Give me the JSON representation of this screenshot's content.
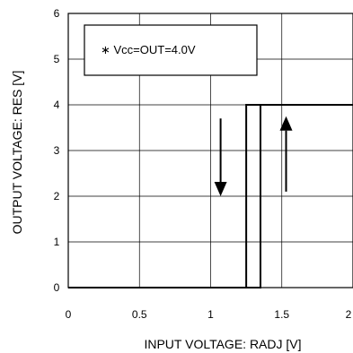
{
  "chart_data": {
    "type": "line",
    "title": "",
    "xlabel": "INPUT VOLTAGE: RADJ [V]",
    "ylabel": "OUTPUT VOLTAGE: RES [V]",
    "xlim": [
      0,
      2
    ],
    "ylim": [
      0,
      6
    ],
    "x_ticks": [
      0,
      0.5,
      1,
      1.5,
      2
    ],
    "x_tick_labels": [
      "0",
      "0.5",
      "1",
      "1.5",
      "2"
    ],
    "y_ticks": [
      0,
      1,
      2,
      3,
      4,
      5,
      6
    ],
    "y_tick_labels": [
      "0",
      "1",
      "2",
      "3",
      "4",
      "5",
      "6"
    ],
    "grid": true,
    "annotation": "∗ Vcc=OUT=4.0V",
    "series": [
      {
        "x": [
          2.0,
          1.25,
          1.25
        ],
        "y": [
          4.0,
          4.0,
          0.0
        ]
      },
      {
        "x": [
          0.0,
          1.35,
          1.35,
          2.0
        ],
        "y": [
          0.0,
          0.0,
          4.0,
          4.0
        ]
      }
    ],
    "arrows": [
      {
        "direction": "down",
        "x": 1.07,
        "y_from": 3.7,
        "y_to": 2.0
      },
      {
        "direction": "up",
        "x": 1.53,
        "y_from": 2.1,
        "y_to": 3.75
      }
    ],
    "colors": {
      "line": "#000000",
      "grid": "#000000",
      "background": "#ffffff"
    }
  }
}
